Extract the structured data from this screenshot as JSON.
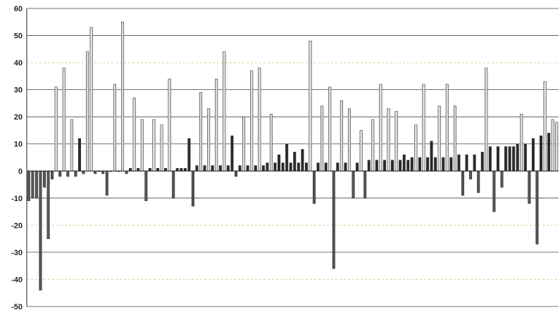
{
  "chart_data": {
    "type": "bar",
    "title": "",
    "xlabel": "",
    "ylabel": "",
    "ylim": [
      -50,
      60
    ],
    "yticks": [
      60,
      50,
      40,
      30,
      20,
      10,
      0,
      -10,
      -20,
      -30,
      -40,
      -50
    ],
    "dashed_gridlines": [
      40,
      -20,
      -40
    ],
    "grid": true,
    "legend": "none",
    "colors": {
      "negative_bar": "#555555",
      "positive_bar_light": "#dcdcdc",
      "small_positive_bar": "#2a2a2a",
      "bar_outline": "#333333",
      "grid": "#444444",
      "dashed_grid": "#d8cf9a"
    },
    "series": [
      {
        "values": [
          [
            -11,
            -10,
            -10,
            -44,
            -6,
            -25,
            -3,
            31,
            -2,
            38,
            -2,
            19,
            -2,
            12,
            -1,
            44,
            53,
            -1,
            0,
            -1,
            -9,
            0,
            32,
            0,
            55,
            -1,
            1,
            27,
            1,
            19,
            -11,
            1,
            19,
            1,
            17,
            1,
            34,
            -10,
            1,
            1,
            1,
            12,
            -13,
            2,
            29,
            2,
            23,
            2,
            34,
            2,
            44,
            2,
            13,
            -2,
            2,
            20,
            2,
            37,
            2,
            38,
            2,
            3,
            21,
            3,
            6,
            3,
            10,
            3,
            7,
            3,
            8,
            3,
            48,
            -12,
            3,
            24,
            3,
            31,
            -36,
            3,
            26,
            3,
            23,
            -10,
            3,
            15,
            -10,
            4,
            19,
            4,
            32,
            4,
            23,
            4,
            22,
            4,
            6,
            4,
            5,
            17,
            5,
            32,
            5,
            11,
            5,
            24,
            5,
            32,
            5,
            24,
            6,
            -9,
            6,
            -3,
            6,
            -8,
            7,
            38,
            9,
            -15,
            9,
            -6,
            9,
            9,
            9,
            10,
            21,
            10,
            -12,
            12,
            -27,
            13,
            33,
            14,
            19,
            18
          ]
        ]
      }
    ]
  }
}
